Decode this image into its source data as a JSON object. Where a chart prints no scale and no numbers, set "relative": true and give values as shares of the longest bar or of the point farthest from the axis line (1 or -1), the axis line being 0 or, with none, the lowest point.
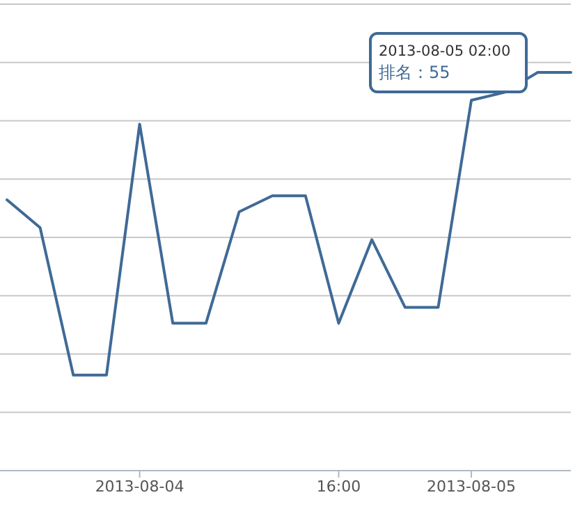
{
  "chart_data": {
    "type": "line",
    "relative": true,
    "grid": "y",
    "categories": [
      null,
      null,
      null,
      null,
      "2013-08-04",
      null,
      null,
      null,
      null,
      null,
      "16:00",
      null,
      null,
      null,
      "2013-08-05",
      null,
      null,
      null
    ],
    "series": [
      {
        "color": "#3f6a96",
        "values": [
          0.68,
          0.61,
          0.24,
          0.24,
          0.87,
          0.37,
          0.37,
          0.65,
          0.69,
          0.69,
          0.37,
          0.58,
          0.41,
          0.41,
          0.93,
          0.95,
          1,
          1
        ]
      }
    ],
    "annotations": [
      "2013-08-05 02:00\n排名：55"
    ]
  }
}
